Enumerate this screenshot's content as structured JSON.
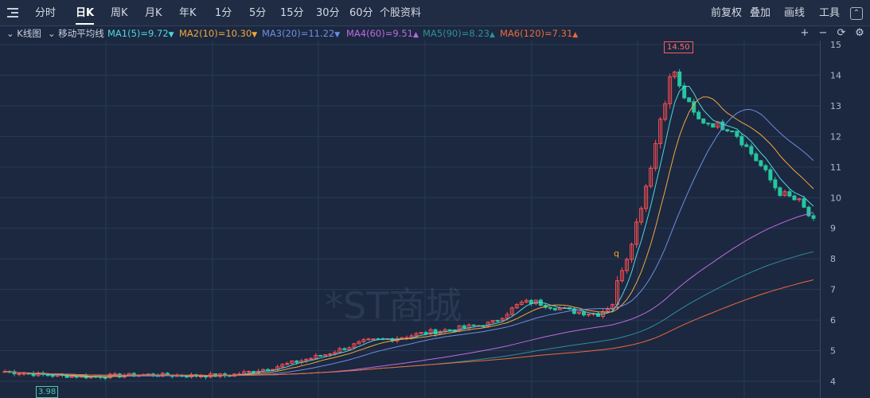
{
  "toolbar": {
    "tabs": [
      "分时",
      "日K",
      "周K",
      "月K",
      "年K",
      "1分",
      "5分",
      "15分",
      "30分",
      "60分",
      "个股资料"
    ],
    "active_tab": "日K",
    "right_tools": [
      "前复权",
      "叠加",
      "画线",
      "工具"
    ]
  },
  "indicator_bar": {
    "kline_label": "K线图",
    "ma_type": "移动平均线",
    "mas": [
      {
        "label": "MA1(5)=9.72",
        "arrow": "▼",
        "color": "#4fd6df"
      },
      {
        "label": "MA2(10)=10.30",
        "arrow": "▼",
        "color": "#f0a93b"
      },
      {
        "label": "MA3(20)=11.22",
        "arrow": "▼",
        "color": "#6f8de0"
      },
      {
        "label": "MA4(60)=9.51",
        "arrow": "▲",
        "color": "#c06ae0"
      },
      {
        "label": "MA5(90)=8.23",
        "arrow": "▲",
        "color": "#2e8f9a"
      },
      {
        "label": "MA6(120)=7.31",
        "arrow": "▲",
        "color": "#f0683a"
      }
    ],
    "controls": [
      "+",
      "−",
      "refresh-icon",
      "gear-icon"
    ]
  },
  "watermark": "*ST商城",
  "markers": {
    "low": "3.98",
    "high": "14.50",
    "q": "q"
  },
  "colors": {
    "up": "#ff4d4f",
    "down": "#26c6a0",
    "background": "#1b2840",
    "grid": "#2a3a55",
    "axis_text": "#aeb7c6"
  },
  "chart_data": {
    "type": "candlestick",
    "ylim": [
      3.7,
      15.1
    ],
    "y_ticks": [
      4,
      5,
      6,
      7,
      8,
      9,
      10,
      11,
      12,
      13,
      14,
      15
    ],
    "num_candles": 170,
    "low_price": 3.98,
    "high_price": 14.5,
    "price_path": [
      [
        0,
        4.32
      ],
      [
        12,
        4.2
      ],
      [
        24,
        4.15
      ],
      [
        40,
        4.22
      ],
      [
        50,
        4.18
      ],
      [
        64,
        4.2
      ],
      [
        76,
        4.45
      ],
      [
        90,
        4.85
      ],
      [
        102,
        5.3
      ],
      [
        110,
        5.4
      ],
      [
        120,
        5.6
      ],
      [
        130,
        5.75
      ],
      [
        138,
        5.9
      ],
      [
        146,
        6.55
      ],
      [
        150,
        6.6
      ],
      [
        160,
        6.3
      ],
      [
        168,
        6.2
      ],
      [
        172,
        6.5
      ],
      [
        174,
        7.5
      ],
      [
        176,
        8.0
      ],
      [
        178,
        8.8
      ],
      [
        180,
        9.65
      ],
      [
        182,
        10.6
      ],
      [
        184,
        11.6
      ],
      [
        186,
        12.8
      ],
      [
        188,
        13.6
      ],
      [
        189,
        14.4
      ],
      [
        191,
        13.6
      ],
      [
        196,
        12.55
      ],
      [
        206,
        12.25
      ],
      [
        214,
        11.05
      ],
      [
        219,
        10.2
      ],
      [
        225,
        9.85
      ],
      [
        229,
        9.2
      ]
    ],
    "ma_endpoints": {
      "MA1": 9.72,
      "MA2": 10.3,
      "MA3": 11.22,
      "MA4": 9.51,
      "MA5": 8.23,
      "MA6": 7.31
    }
  }
}
